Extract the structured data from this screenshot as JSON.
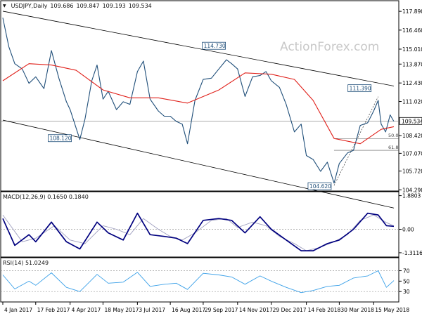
{
  "symbol": "USDJPY,Daily",
  "ohlc": [
    "109.686",
    "109.847",
    "109.193",
    "109.534"
  ],
  "watermark": "ActionForex.com",
  "colors": {
    "background": "#ffffff",
    "frame": "#000000",
    "price": "#1f4e79",
    "ma": "#e0201a",
    "channel": "#000000",
    "last_price_box": "#ffffff",
    "label_border": "#1f4e79",
    "macd_line": "#00007f",
    "macd_signal": "#a0a0c0",
    "rsi_line": "#3aa0e8",
    "level_dotted": "#9a9a9a",
    "watermark": "#c8c8c8"
  },
  "chart_data": [
    {
      "type": "line",
      "panel": "price",
      "title": "USDJPY,Daily",
      "ylim": [
        104.2,
        118.7
      ],
      "y_ticks": [
        "117.890",
        "116.460",
        "115.010",
        "113.870",
        "112.430",
        "111.020",
        "109.534",
        "108.420",
        "107.070",
        "105.720",
        "104.290"
      ],
      "x_ticks": [
        "4 Jan 2017",
        "17 Feb 2017",
        "4 Apr 2017",
        "18 May 2017",
        "3 Jul 2017",
        "16 Aug 2017",
        "29 Sep 2017",
        "14 Nov 2017",
        "29 Dec 2017",
        "14 Feb 2018",
        "30 Mar 2018",
        "15 May 2018"
      ],
      "last_price": "109.534",
      "series": [
        {
          "role": "close",
          "x": [
            "2017-01-04",
            "2017-01-12",
            "2017-01-20",
            "2017-01-30",
            "2017-02-08",
            "2017-02-17",
            "2017-02-28",
            "2017-03-10",
            "2017-03-20",
            "2017-03-30",
            "2017-04-04",
            "2017-04-12",
            "2017-04-17",
            "2017-04-24",
            "2017-05-03",
            "2017-05-10",
            "2017-05-18",
            "2017-05-25",
            "2017-06-05",
            "2017-06-14",
            "2017-06-23",
            "2017-07-03",
            "2017-07-11",
            "2017-07-20",
            "2017-07-31",
            "2017-08-08",
            "2017-08-16",
            "2017-08-24",
            "2017-09-01",
            "2017-09-08",
            "2017-09-18",
            "2017-09-29",
            "2017-10-10",
            "2017-10-20",
            "2017-10-30",
            "2017-11-06",
            "2017-11-14",
            "2017-11-24",
            "2017-12-04",
            "2017-12-14",
            "2017-12-22",
            "2017-12-29",
            "2018-01-09",
            "2018-01-18",
            "2018-01-29",
            "2018-02-07",
            "2018-02-14",
            "2018-02-23",
            "2018-03-05",
            "2018-03-14",
            "2018-03-23",
            "2018-03-30",
            "2018-04-10",
            "2018-04-18",
            "2018-04-27",
            "2018-05-07",
            "2018-05-15",
            "2018-05-21",
            "2018-05-25",
            "2018-05-31",
            "2018-06-06",
            "2018-06-11"
          ],
          "values": [
            117.4,
            115.2,
            113.9,
            113.5,
            112.4,
            112.9,
            112.0,
            114.9,
            112.8,
            111.0,
            110.4,
            109.0,
            108.12,
            109.7,
            112.6,
            113.8,
            111.2,
            111.8,
            110.4,
            111.0,
            110.8,
            113.3,
            114.1,
            111.2,
            110.3,
            109.9,
            109.9,
            109.5,
            109.3,
            107.8,
            111.1,
            112.7,
            112.8,
            113.5,
            114.2,
            113.9,
            113.5,
            111.4,
            112.9,
            113.0,
            113.3,
            112.6,
            112.1,
            110.8,
            108.7,
            109.3,
            106.9,
            106.6,
            105.7,
            106.4,
            104.8,
            106.3,
            107.1,
            107.3,
            109.2,
            109.4,
            110.3,
            111.1,
            109.3,
            108.7,
            110.0,
            109.5
          ]
        },
        {
          "role": "moving_average",
          "x": [
            "2017-01-04",
            "2017-02-08",
            "2017-03-10",
            "2017-04-12",
            "2017-05-18",
            "2017-06-23",
            "2017-07-31",
            "2017-09-08",
            "2017-10-20",
            "2017-11-24",
            "2017-12-29",
            "2018-01-29",
            "2018-02-23",
            "2018-03-23",
            "2018-04-27",
            "2018-05-25",
            "2018-06-11"
          ],
          "values": [
            112.6,
            113.9,
            113.8,
            113.4,
            111.9,
            111.3,
            111.3,
            110.9,
            111.9,
            113.2,
            113.1,
            112.7,
            111.1,
            108.2,
            107.8,
            108.9,
            109.1
          ]
        }
      ],
      "channel": {
        "upper": {
          "x": [
            "2017-01-04",
            "2018-06-11"
          ],
          "values": [
            117.9,
            112.2
          ]
        },
        "lower": {
          "x": [
            "2017-01-04",
            "2018-06-11"
          ],
          "values": [
            109.6,
            102.9
          ]
        }
      },
      "annotations": [
        {
          "text": "114.730",
          "x": "2017-10-10",
          "value": 114.73
        },
        {
          "text": "108.120",
          "x": "2017-04-17",
          "value": 108.12
        },
        {
          "text": "104.620",
          "x": "2018-03-23",
          "value": 104.62
        },
        {
          "text": "111.390",
          "x": "2018-05-21",
          "value": 111.39
        }
      ],
      "fib_levels": [
        {
          "label": "50.0",
          "value": 108.2
        },
        {
          "label": "61.8",
          "value": 107.3
        }
      ]
    },
    {
      "type": "line",
      "panel": "macd",
      "title": "MACD(12,26,9) 0.1650 0.1840",
      "ylim": [
        -1.55,
        2.1
      ],
      "y_ticks": [
        "1.8803",
        "0.00",
        "-1.3116"
      ],
      "series": [
        {
          "role": "macd",
          "x": [
            "2017-01-04",
            "2017-01-20",
            "2017-02-08",
            "2017-02-17",
            "2017-03-10",
            "2017-03-30",
            "2017-04-17",
            "2017-05-10",
            "2017-05-25",
            "2017-06-14",
            "2017-07-03",
            "2017-07-20",
            "2017-08-08",
            "2017-08-24",
            "2017-09-08",
            "2017-09-29",
            "2017-10-20",
            "2017-11-06",
            "2017-11-24",
            "2017-12-14",
            "2017-12-29",
            "2018-01-18",
            "2018-02-07",
            "2018-02-23",
            "2018-03-14",
            "2018-03-30",
            "2018-04-18",
            "2018-05-07",
            "2018-05-21",
            "2018-06-01",
            "2018-06-11"
          ],
          "values": [
            0.6,
            -0.9,
            -0.3,
            -0.7,
            0.4,
            -0.7,
            -1.1,
            0.4,
            -0.2,
            -0.6,
            0.9,
            -0.3,
            -0.4,
            -0.5,
            -0.8,
            0.5,
            0.6,
            0.5,
            -0.2,
            0.7,
            0.0,
            -0.6,
            -1.2,
            -1.2,
            -0.8,
            -0.6,
            0.0,
            0.9,
            0.8,
            0.2,
            0.165
          ]
        },
        {
          "role": "signal",
          "x": [
            "2017-01-04",
            "2017-01-30",
            "2017-02-17",
            "2017-03-14",
            "2017-04-04",
            "2017-04-24",
            "2017-05-18",
            "2017-06-05",
            "2017-06-23",
            "2017-07-11",
            "2017-07-31",
            "2017-08-16",
            "2017-09-01",
            "2017-09-18",
            "2017-10-10",
            "2017-10-30",
            "2017-11-14",
            "2017-12-04",
            "2017-12-22",
            "2018-01-09",
            "2018-01-29",
            "2018-02-14",
            "2018-03-05",
            "2018-03-23",
            "2018-04-10",
            "2018-04-27",
            "2018-05-15",
            "2018-05-31",
            "2018-06-11"
          ],
          "values": [
            0.8,
            -0.7,
            -0.5,
            0.2,
            -0.6,
            -0.8,
            0.2,
            0.0,
            -0.3,
            0.6,
            0.0,
            -0.4,
            -0.6,
            -0.2,
            0.5,
            0.6,
            0.1,
            0.4,
            0.2,
            -0.4,
            -0.8,
            -1.2,
            -1.0,
            -0.7,
            -0.3,
            0.5,
            0.8,
            0.4,
            0.184
          ]
        }
      ]
    },
    {
      "type": "line",
      "panel": "rsi",
      "title": "RSI(14) 51.0249",
      "ylim": [
        10,
        95
      ],
      "y_ticks": [
        "70",
        "50",
        "30"
      ],
      "series": [
        {
          "role": "rsi",
          "x": [
            "2017-01-04",
            "2017-01-20",
            "2017-02-08",
            "2017-02-17",
            "2017-03-10",
            "2017-03-30",
            "2017-04-17",
            "2017-05-10",
            "2017-05-25",
            "2017-06-14",
            "2017-07-03",
            "2017-07-20",
            "2017-08-08",
            "2017-08-24",
            "2017-09-08",
            "2017-09-29",
            "2017-10-20",
            "2017-11-06",
            "2017-11-24",
            "2017-12-14",
            "2017-12-29",
            "2018-01-18",
            "2018-02-07",
            "2018-02-23",
            "2018-03-14",
            "2018-03-30",
            "2018-04-18",
            "2018-05-07",
            "2018-05-21",
            "2018-06-01",
            "2018-06-11"
          ],
          "values": [
            62,
            35,
            50,
            42,
            66,
            38,
            30,
            63,
            46,
            48,
            67,
            40,
            44,
            46,
            34,
            65,
            62,
            58,
            44,
            60,
            50,
            38,
            28,
            32,
            40,
            42,
            56,
            60,
            70,
            38,
            51.0249
          ]
        }
      ]
    }
  ]
}
